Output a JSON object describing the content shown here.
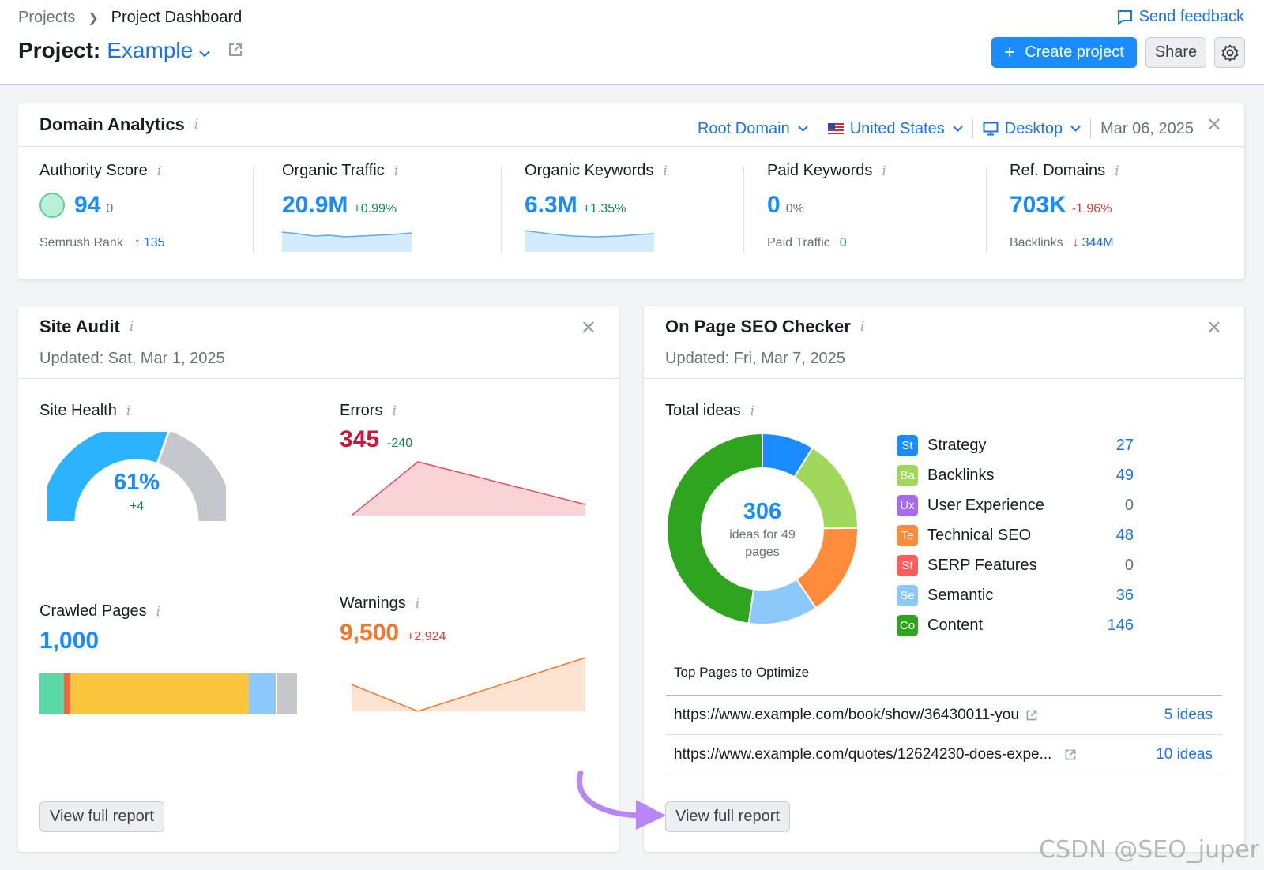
{
  "header": {
    "breadcrumb_root": "Projects",
    "breadcrumb_current": "Project Dashboard",
    "project_prefix": "Project:",
    "project_name": "Example",
    "send_feedback": "Send feedback",
    "create_project": "Create project",
    "share": "Share"
  },
  "domain_analytics": {
    "title": "Domain Analytics",
    "filters": {
      "root_domain": "Root Domain",
      "country": "United States",
      "device": "Desktop",
      "date": "Mar 06, 2025"
    },
    "metrics": [
      {
        "label": "Authority Score",
        "value": "94",
        "delta": "0",
        "sub_label": "Semrush Rank",
        "sub_value": "135"
      },
      {
        "label": "Organic Traffic",
        "value": "20.9M",
        "delta": "+0.99%"
      },
      {
        "label": "Organic Keywords",
        "value": "6.3M",
        "delta": "+1.35%"
      },
      {
        "label": "Paid Keywords",
        "value": "0",
        "delta": "0%",
        "sub_label": "Paid Traffic",
        "sub_value": "0"
      },
      {
        "label": "Ref. Domains",
        "value": "703K",
        "delta": "-1.96%",
        "sub_label": "Backlinks",
        "sub_value": "344M"
      }
    ]
  },
  "site_audit": {
    "title": "Site Audit",
    "updated": "Updated: Sat, Mar 1, 2025",
    "site_health_label": "Site Health",
    "site_health_value": "61%",
    "site_health_delta": "+4",
    "site_health_fraction": 0.61,
    "errors_label": "Errors",
    "errors_value": "345",
    "errors_delta": "-240",
    "crawled_label": "Crawled Pages",
    "crawled_value": "1,000",
    "warnings_label": "Warnings",
    "warnings_value": "9,500",
    "warnings_delta": "+2,924",
    "view_report": "View full report"
  },
  "on_page": {
    "title": "On Page SEO Checker",
    "updated": "Updated: Fri, Mar 7, 2025",
    "total_ideas_label": "Total ideas",
    "total": "306",
    "total_caption": "ideas for 49 pages",
    "legend": [
      {
        "abbr": "St",
        "name": "Strategy",
        "count": "27",
        "color": "#1a8cff"
      },
      {
        "abbr": "Ba",
        "name": "Backlinks",
        "count": "49",
        "color": "#9fd85a"
      },
      {
        "abbr": "Ux",
        "name": "User Experience",
        "count": "0",
        "color": "#a66cf0"
      },
      {
        "abbr": "Te",
        "name": "Technical SEO",
        "count": "48",
        "color": "#ff8c3b"
      },
      {
        "abbr": "Sf",
        "name": "SERP Features",
        "count": "0",
        "color": "#ff5c5c"
      },
      {
        "abbr": "Se",
        "name": "Semantic",
        "count": "36",
        "color": "#8cc8fa"
      },
      {
        "abbr": "Co",
        "name": "Content",
        "count": "146",
        "color": "#2ea41f"
      }
    ],
    "top_pages_title": "Top Pages to Optimize",
    "top_pages": [
      {
        "url": "https://www.example.com/book/show/36430011-you",
        "ideas": "5 ideas"
      },
      {
        "url": "https://www.example.com/quotes/12624230-does-expe...",
        "ideas": "10 ideas"
      }
    ],
    "view_report": "View full report"
  },
  "watermark": "CSDN @SEO_juper"
}
